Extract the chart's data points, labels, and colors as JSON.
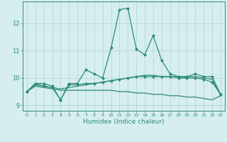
{
  "x": [
    0,
    1,
    2,
    3,
    4,
    5,
    6,
    7,
    8,
    9,
    10,
    11,
    12,
    13,
    14,
    15,
    16,
    17,
    18,
    19,
    20,
    21,
    22,
    23
  ],
  "line1": [
    9.5,
    9.8,
    9.8,
    9.7,
    9.2,
    9.8,
    9.8,
    10.3,
    10.15,
    10.0,
    11.1,
    12.5,
    12.55,
    11.05,
    10.85,
    11.55,
    10.65,
    10.15,
    10.05,
    10.05,
    10.15,
    10.05,
    10.05,
    9.4
  ],
  "line2": [
    9.5,
    9.8,
    9.7,
    9.65,
    9.2,
    9.75,
    9.75,
    9.8,
    9.8,
    9.85,
    9.9,
    9.95,
    10.0,
    10.05,
    10.05,
    10.05,
    10.05,
    10.05,
    10.0,
    10.0,
    10.0,
    9.95,
    9.85,
    9.4
  ],
  "line3": [
    9.5,
    9.7,
    9.65,
    9.6,
    9.55,
    9.55,
    9.55,
    9.55,
    9.55,
    9.55,
    9.55,
    9.5,
    9.5,
    9.45,
    9.45,
    9.4,
    9.4,
    9.35,
    9.35,
    9.3,
    9.3,
    9.25,
    9.2,
    9.35
  ],
  "line4": [
    9.5,
    9.75,
    9.7,
    9.65,
    9.6,
    9.65,
    9.7,
    9.75,
    9.8,
    9.85,
    9.9,
    9.95,
    10.0,
    10.05,
    10.1,
    10.1,
    10.05,
    10.05,
    10.05,
    10.05,
    10.05,
    10.0,
    9.95,
    9.4
  ],
  "color": "#2e8b7a",
  "bg_color": "#d6eeee",
  "grid_color": "#b0d4d4",
  "xlabel": "Humidex (Indice chaleur)",
  "yticks": [
    9,
    10,
    11,
    12
  ],
  "xticks": [
    0,
    1,
    2,
    3,
    4,
    5,
    6,
    7,
    8,
    9,
    10,
    11,
    12,
    13,
    14,
    15,
    16,
    17,
    18,
    19,
    20,
    21,
    22,
    23
  ],
  "ylim": [
    8.8,
    12.8
  ],
  "xlim": [
    -0.5,
    23.5
  ],
  "marker": "D",
  "markersize": 2.0,
  "linewidth": 0.9
}
